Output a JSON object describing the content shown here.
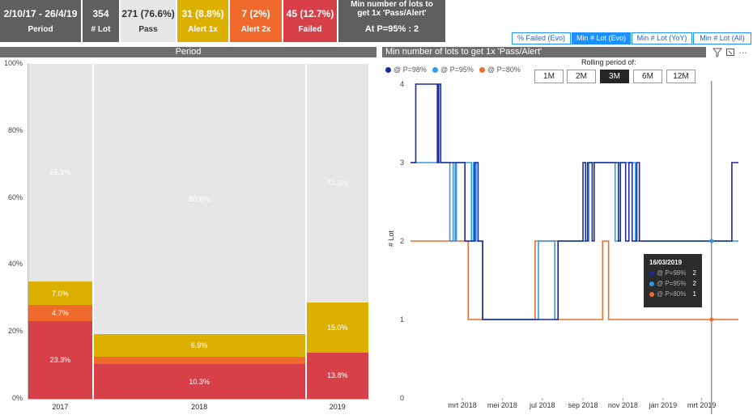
{
  "kpi_cards": [
    {
      "value": "2/10/17 - 26/4/19",
      "label": "Period",
      "bg": "#5f5f5f",
      "fg": "#ffffff"
    },
    {
      "value": "354",
      "label": "# Lot",
      "bg": "#5f5f5f",
      "fg": "#ffffff"
    },
    {
      "value": "271 (76.6%)",
      "label": "Pass",
      "bg": "#e6e6e6",
      "fg": "#333333"
    },
    {
      "value": "31 (8.8%)",
      "label": "Alert 1x",
      "bg": "#dcb000",
      "fg": "#ffffff"
    },
    {
      "value": "7 (2%)",
      "label": "Alert 2x",
      "bg": "#ef6a2b",
      "fg": "#ffffff"
    },
    {
      "value": "45 (12.7%)",
      "label": "Failed",
      "bg": "#d84049",
      "fg": "#ffffff"
    }
  ],
  "min_lots_card": {
    "title": "Min number of lots to get 1x 'Pass/Alert'",
    "value": "At P=95% : 2"
  },
  "tabs": [
    {
      "label": "% Failed (Evo)",
      "active": false
    },
    {
      "label": "Min # Lot (Evo)",
      "active": true
    },
    {
      "label": "Min # Lot (YoY)",
      "active": false
    },
    {
      "label": "Min # Lot (All)",
      "active": false
    }
  ],
  "left_panel": {
    "title": "Period"
  },
  "right_panel": {
    "title": "Min number of lots to get 1x 'Pass/Alert'",
    "rolling_label": "Rolling period of:",
    "rolling_buttons": [
      {
        "label": "1M",
        "active": false
      },
      {
        "label": "2M",
        "active": false
      },
      {
        "label": "3M",
        "active": true
      },
      {
        "label": "6M",
        "active": false
      },
      {
        "label": "12M",
        "active": false
      }
    ]
  },
  "colors": {
    "pass": "#e6e6e6",
    "alert1": "#dcb000",
    "alert2": "#ef6a2b",
    "failed": "#d84049",
    "p98": "#1b2a9a",
    "p95": "#2f9be6",
    "p80": "#ec6d2d"
  },
  "chart_data": [
    {
      "type": "bar",
      "title": "Period",
      "categories": [
        "2017",
        "2018",
        "2019"
      ],
      "category_weights": [
        67,
        222,
        65
      ],
      "ylim": [
        0,
        100
      ],
      "yticks": [
        "0%",
        "20%",
        "40%",
        "60%",
        "80%",
        "100%"
      ],
      "series": [
        {
          "name": "Failed",
          "values": [
            23.3,
            10.3,
            13.8
          ],
          "labels": [
            "23.3%",
            "10.3%",
            "13.8%"
          ]
        },
        {
          "name": "Alert 2x",
          "values": [
            4.7,
            2.2,
            0
          ],
          "labels": [
            "4.7%",
            "",
            ""
          ]
        },
        {
          "name": "Alert 1x",
          "values": [
            7.0,
            6.9,
            15.0
          ],
          "labels": [
            "7.0%",
            "6.9%",
            "15.0%"
          ]
        },
        {
          "name": "Pass",
          "values": [
            65.1,
            80.6,
            71.3
          ],
          "labels": [
            "65.1%",
            "80.6%",
            "71.3%"
          ]
        }
      ]
    },
    {
      "type": "line",
      "title": "Min number of lots to get 1x 'Pass/Alert'",
      "ylabel": "# Lot",
      "ylim": [
        0,
        4
      ],
      "yticks": [
        "0",
        "1",
        "2",
        "3",
        "4"
      ],
      "xlim": [
        "2017-12-12",
        "2019-04-26"
      ],
      "xticks": [
        {
          "date": "2018-03-01",
          "label": "mrt 2018"
        },
        {
          "date": "2018-05-01",
          "label": "mei 2018"
        },
        {
          "date": "2018-07-01",
          "label": "jul 2018"
        },
        {
          "date": "2018-09-01",
          "label": "sep 2018"
        },
        {
          "date": "2018-11-01",
          "label": "nov 2018"
        },
        {
          "date": "2019-01-01",
          "label": "jan 2019"
        },
        {
          "date": "2019-03-01",
          "label": "mrt 2019"
        }
      ],
      "series": [
        {
          "name": "@ P=98%",
          "step": [
            [
              "2017-12-12",
              3
            ],
            [
              "2017-12-20",
              4
            ],
            [
              "2018-01-22",
              3
            ],
            [
              "2018-01-24",
              4
            ],
            [
              "2018-01-27",
              3
            ],
            [
              "2018-03-05",
              2
            ],
            [
              "2018-03-20",
              3
            ],
            [
              "2018-03-25",
              2
            ],
            [
              "2018-04-01",
              1
            ],
            [
              "2018-07-25",
              2
            ],
            [
              "2018-09-01",
              3
            ],
            [
              "2018-09-05",
              2
            ],
            [
              "2018-09-08",
              3
            ],
            [
              "2018-09-15",
              2
            ],
            [
              "2018-09-18",
              3
            ],
            [
              "2018-10-25",
              2
            ],
            [
              "2018-10-28",
              3
            ],
            [
              "2018-11-05",
              2
            ],
            [
              "2018-11-10",
              3
            ],
            [
              "2018-11-15",
              2
            ],
            [
              "2018-11-22",
              3
            ],
            [
              "2018-11-26",
              2
            ],
            [
              "2019-04-16",
              3
            ],
            [
              "2019-04-26",
              3
            ]
          ]
        },
        {
          "name": "@ P=95%",
          "step": [
            [
              "2017-12-12",
              3
            ],
            [
              "2018-01-27",
              3
            ],
            [
              "2018-02-10",
              2
            ],
            [
              "2018-02-15",
              3
            ],
            [
              "2018-02-18",
              2
            ],
            [
              "2018-02-20",
              3
            ],
            [
              "2018-03-15",
              2
            ],
            [
              "2018-03-18",
              3
            ],
            [
              "2018-03-22",
              2
            ],
            [
              "2018-04-01",
              1
            ],
            [
              "2018-06-25",
              2
            ],
            [
              "2018-07-20",
              1
            ],
            [
              "2018-07-25",
              2
            ],
            [
              "2018-09-10",
              3
            ],
            [
              "2018-10-20",
              2
            ],
            [
              "2018-10-25",
              3
            ],
            [
              "2018-11-20",
              2
            ],
            [
              "2019-04-26",
              2
            ]
          ]
        },
        {
          "name": "@ P=80%",
          "step": [
            [
              "2017-12-12",
              2
            ],
            [
              "2018-03-10",
              1
            ],
            [
              "2018-06-20",
              2
            ],
            [
              "2018-07-25",
              1
            ],
            [
              "2018-10-01",
              2
            ],
            [
              "2018-10-10",
              1
            ],
            [
              "2019-04-26",
              1
            ]
          ]
        }
      ],
      "tooltip": {
        "date": "16/03/2019",
        "items": [
          {
            "name": "@ P=98%",
            "value": "2"
          },
          {
            "name": "@ P=95%",
            "value": "2"
          },
          {
            "name": "@ P=80%",
            "value": "1"
          }
        ]
      },
      "hover_date": "2019-03-16"
    }
  ]
}
